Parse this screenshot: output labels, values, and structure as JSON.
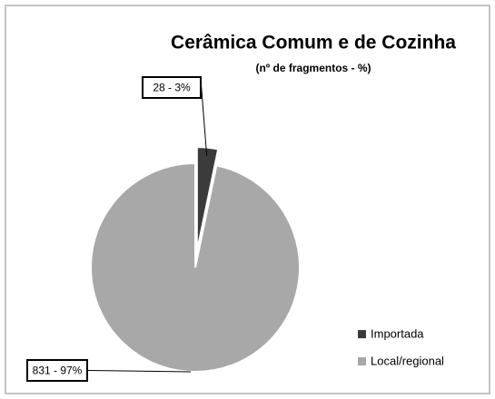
{
  "chart_data": {
    "type": "pie",
    "title": "Cerâmica Comum e de Cozinha",
    "subtitle": "(nº de fragmentos - %)",
    "categories": [
      "Importada",
      "Local/regional"
    ],
    "values": [
      28,
      831
    ],
    "value_labels": [
      "28 - 3%",
      "831 - 97%"
    ],
    "colors": [
      "#3b3b3b",
      "#a8a8a8"
    ],
    "legend": "right"
  }
}
